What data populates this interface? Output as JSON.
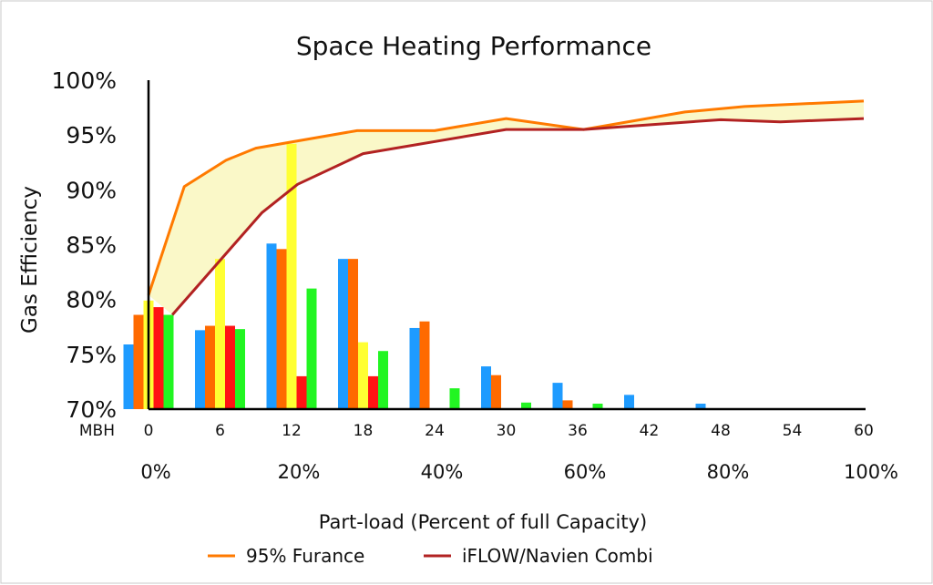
{
  "chart_data": {
    "type": "bar+line",
    "title": "Space Heating Performance",
    "ylabel": "Gas Efficiency",
    "xlabel": "Part-load (Percent of full Capacity)",
    "x_unit_label": "MBH",
    "ylim": [
      70,
      100
    ],
    "yticks": [
      "70%",
      "75%",
      "80%",
      "85%",
      "90%",
      "95%",
      "100%"
    ],
    "xlim": [
      0,
      60
    ],
    "xticks": [
      "0",
      "6",
      "12",
      "18",
      "24",
      "30",
      "36",
      "42",
      "48",
      "54",
      "60"
    ],
    "percent_ticks": [
      "0%",
      "20%",
      "40%",
      "60%",
      "80%",
      "100%"
    ],
    "grid": false,
    "legend_position": "bottom",
    "bar_groups": [
      0,
      6,
      12,
      18,
      24,
      30,
      36,
      42,
      48
    ],
    "bar_series": [
      {
        "color": "#1e9bff",
        "values": [
          75.9,
          77.2,
          85.1,
          83.7,
          77.4,
          73.9,
          72.4,
          71.3,
          70.5
        ]
      },
      {
        "color": "#ff6a00",
        "values": [
          78.6,
          77.6,
          84.6,
          83.7,
          78.0,
          73.1,
          70.8,
          null,
          null
        ]
      },
      {
        "color": "#ffff33",
        "values": [
          79.9,
          83.7,
          94.2,
          76.1,
          null,
          null,
          null,
          null,
          null
        ]
      },
      {
        "color": "#ff1414",
        "values": [
          79.3,
          77.6,
          73.0,
          73.0,
          null,
          null,
          null,
          null,
          null
        ]
      },
      {
        "color": "#22f522",
        "values": [
          78.6,
          77.3,
          81.0,
          75.3,
          71.9,
          70.6,
          70.5,
          null,
          null
        ]
      }
    ],
    "line_series": [
      {
        "name": "95% Furance",
        "color": "#ff7a00",
        "x": [
          0,
          3,
          6.5,
          9,
          17.5,
          24,
          30,
          36.5,
          45,
          50,
          60
        ],
        "y": [
          80.4,
          90.3,
          92.7,
          93.8,
          95.4,
          95.4,
          96.5,
          95.5,
          97.1,
          97.6,
          98.1
        ]
      },
      {
        "name": "iFLOW/Navien Combi",
        "color": "#b22222",
        "x": [
          2,
          9.5,
          12.5,
          18,
          30,
          36.5,
          48,
          53,
          60
        ],
        "y": [
          78.6,
          87.9,
          90.5,
          93.3,
          95.5,
          95.5,
          96.4,
          96.2,
          96.5
        ]
      }
    ],
    "band_fill_color": "#faf8c8"
  }
}
